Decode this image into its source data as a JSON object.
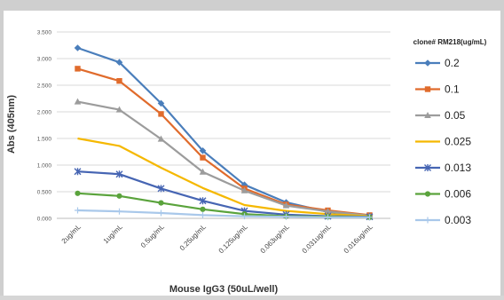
{
  "chart_data": {
    "type": "line",
    "xlabel": "Mouse IgG3 (50uL/well)",
    "ylabel": "Abs (405nm)",
    "ylim": [
      0,
      3.5
    ],
    "yticks": [
      "0.000",
      "0.500",
      "1.000",
      "1.500",
      "2.000",
      "2.500",
      "3.000",
      "3.500"
    ],
    "categories": [
      "2ug/mL",
      "1ug/mL",
      "0.5ug/mL",
      "0.25ug/mL",
      "0.125ug/mL",
      "0.063ug/mL",
      "0.031ug/mL",
      "0.016ug/mL"
    ],
    "grid": true,
    "legend_title": "clone# RM218(ug/mL)",
    "legend_position": "right",
    "series": [
      {
        "name": "0.2",
        "color": "#4a7ebb",
        "marker": "diamond",
        "values": [
          3.2,
          2.93,
          2.16,
          1.27,
          0.63,
          0.3,
          0.12,
          0.05
        ]
      },
      {
        "name": "0.1",
        "color": "#e06b2c",
        "marker": "square",
        "values": [
          2.81,
          2.58,
          1.96,
          1.14,
          0.56,
          0.26,
          0.15,
          0.06
        ]
      },
      {
        "name": "0.05",
        "color": "#9c9c9c",
        "marker": "triangle",
        "values": [
          2.19,
          2.04,
          1.49,
          0.87,
          0.52,
          0.24,
          0.13,
          0.05
        ]
      },
      {
        "name": "0.025",
        "color": "#f5b800",
        "marker": "none",
        "values": [
          1.5,
          1.36,
          0.95,
          0.57,
          0.25,
          0.14,
          0.08,
          0.04
        ]
      },
      {
        "name": "0.013",
        "color": "#4665b3",
        "marker": "star",
        "values": [
          0.88,
          0.83,
          0.56,
          0.33,
          0.14,
          0.07,
          0.04,
          0.03
        ]
      },
      {
        "name": "0.006",
        "color": "#5aa33c",
        "marker": "circle",
        "values": [
          0.47,
          0.42,
          0.29,
          0.17,
          0.08,
          0.04,
          0.03,
          0.02
        ]
      },
      {
        "name": "0.003",
        "color": "#a9c8ea",
        "marker": "plus",
        "values": [
          0.15,
          0.13,
          0.1,
          0.06,
          0.04,
          0.03,
          0.02,
          0.02
        ]
      }
    ]
  }
}
